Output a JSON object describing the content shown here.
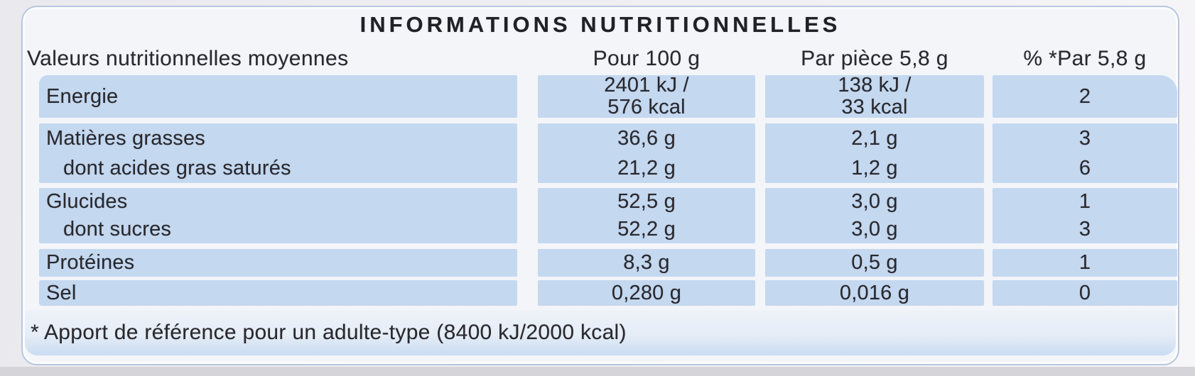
{
  "title": "INFORMATIONS NUTRITIONNELLES",
  "table": {
    "headers": [
      "Valeurs nutritionnelles moyennes",
      "Pour 100 g",
      "Par pièce 5,8 g",
      "% *Par 5,8 g"
    ],
    "bands": [
      {
        "lines": [
          {
            "label": "Energie",
            "per100": [
              "2401 kJ /",
              "576 kcal"
            ],
            "per_piece": [
              "138 kJ /",
              "33 kcal"
            ],
            "pct": "2"
          }
        ]
      },
      {
        "lines": [
          {
            "label": "Matières grasses",
            "per100": "36,6 g",
            "per_piece": "2,1 g",
            "pct": "3"
          },
          {
            "label": "dont acides gras saturés",
            "per100": "21,2 g",
            "per_piece": "1,2 g",
            "pct": "6"
          }
        ]
      },
      {
        "lines": [
          {
            "label": "Glucides",
            "per100": "52,5 g",
            "per_piece": "3,0 g",
            "pct": "1"
          },
          {
            "label": "dont sucres",
            "per100": "52,2 g",
            "per_piece": "3,0 g",
            "pct": "3"
          }
        ]
      },
      {
        "lines": [
          {
            "label": "Protéines",
            "per100": "8,3 g",
            "per_piece": "0,5 g",
            "pct": "1"
          }
        ]
      },
      {
        "lines": [
          {
            "label": "Sel",
            "per100": "0,280 g",
            "per_piece": "0,016 g",
            "pct": "0"
          }
        ]
      }
    ]
  },
  "footnote": "* Apport de référence pour un adulte-type (8400 kJ/2000 kcal)",
  "colors": {
    "cell_blue": "#c4d8f0",
    "card_bg": "#f3f5f9",
    "card_border": "#b7c7de",
    "footer_blue": "#cadcf1",
    "bottom_strip": "#d5d4d8",
    "text": "#29292e"
  }
}
